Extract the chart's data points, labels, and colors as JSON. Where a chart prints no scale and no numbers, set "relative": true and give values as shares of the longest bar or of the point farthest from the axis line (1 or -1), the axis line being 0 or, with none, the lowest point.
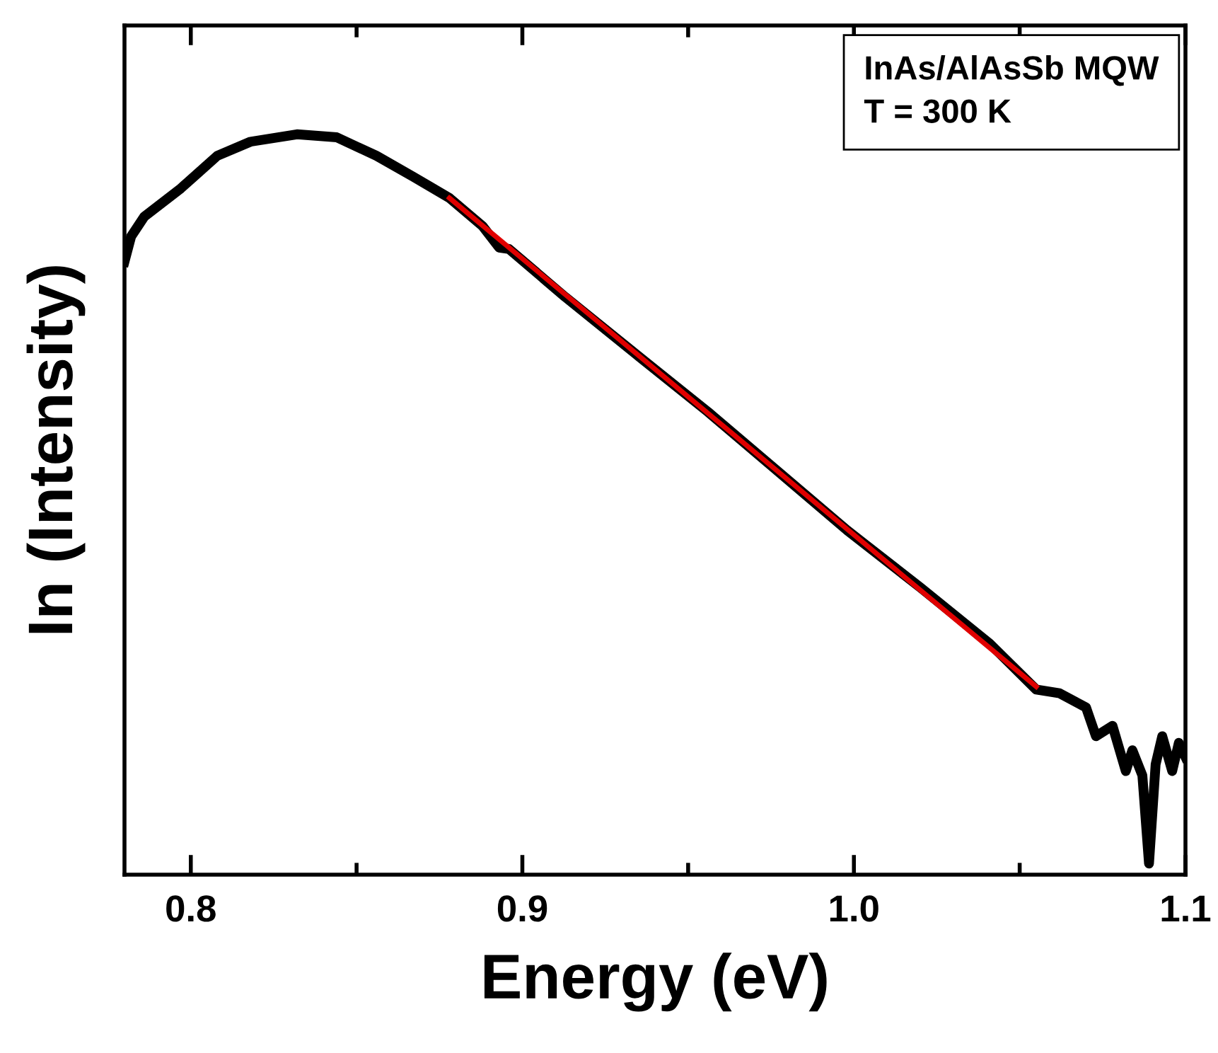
{
  "chart_data": {
    "type": "line",
    "relative": true,
    "xlabel": "Energy (eV)",
    "ylabel": "In (Intensity)",
    "xlim": [
      0.78,
      1.1
    ],
    "xticks": [
      {
        "value": 0.8,
        "label": "0.8"
      },
      {
        "value": 0.9,
        "label": "0.9"
      },
      {
        "value": 1.0,
        "label": "1.0"
      },
      {
        "value": 1.1,
        "label": "1.1"
      }
    ],
    "tick_labels": "x",
    "grid": false,
    "legend": false,
    "annotations": [
      "InAs/AlAsSb MQW",
      "T = 300 K"
    ],
    "series": [
      {
        "color": "#000000",
        "x": [
          0.78,
          0.782,
          0.786,
          0.797,
          0.808,
          0.818,
          0.832,
          0.844,
          0.856,
          0.867,
          0.878,
          0.888,
          0.893,
          0.896,
          0.913,
          0.934,
          0.956,
          0.977,
          0.998,
          1.02,
          1.041,
          1.055,
          1.062,
          1.07,
          1.073,
          1.078,
          1.082,
          1.084,
          1.087,
          1.089,
          1.091,
          1.093,
          1.096,
          1.098,
          1.1
        ],
        "values": [
          0.828,
          0.862,
          0.889,
          0.927,
          0.971,
          0.99,
          1.0,
          0.996,
          0.971,
          0.943,
          0.914,
          0.876,
          0.847,
          0.845,
          0.78,
          0.704,
          0.625,
          0.545,
          0.465,
          0.388,
          0.312,
          0.25,
          0.245,
          0.226,
          0.187,
          0.201,
          0.14,
          0.168,
          0.134,
          0.015,
          0.149,
          0.187,
          0.14,
          0.178,
          0.159
        ]
      },
      {
        "type": "line",
        "color": "#e00000",
        "x": [
          0.878,
          1.055
        ],
        "values": [
          0.914,
          0.254
        ]
      }
    ]
  }
}
